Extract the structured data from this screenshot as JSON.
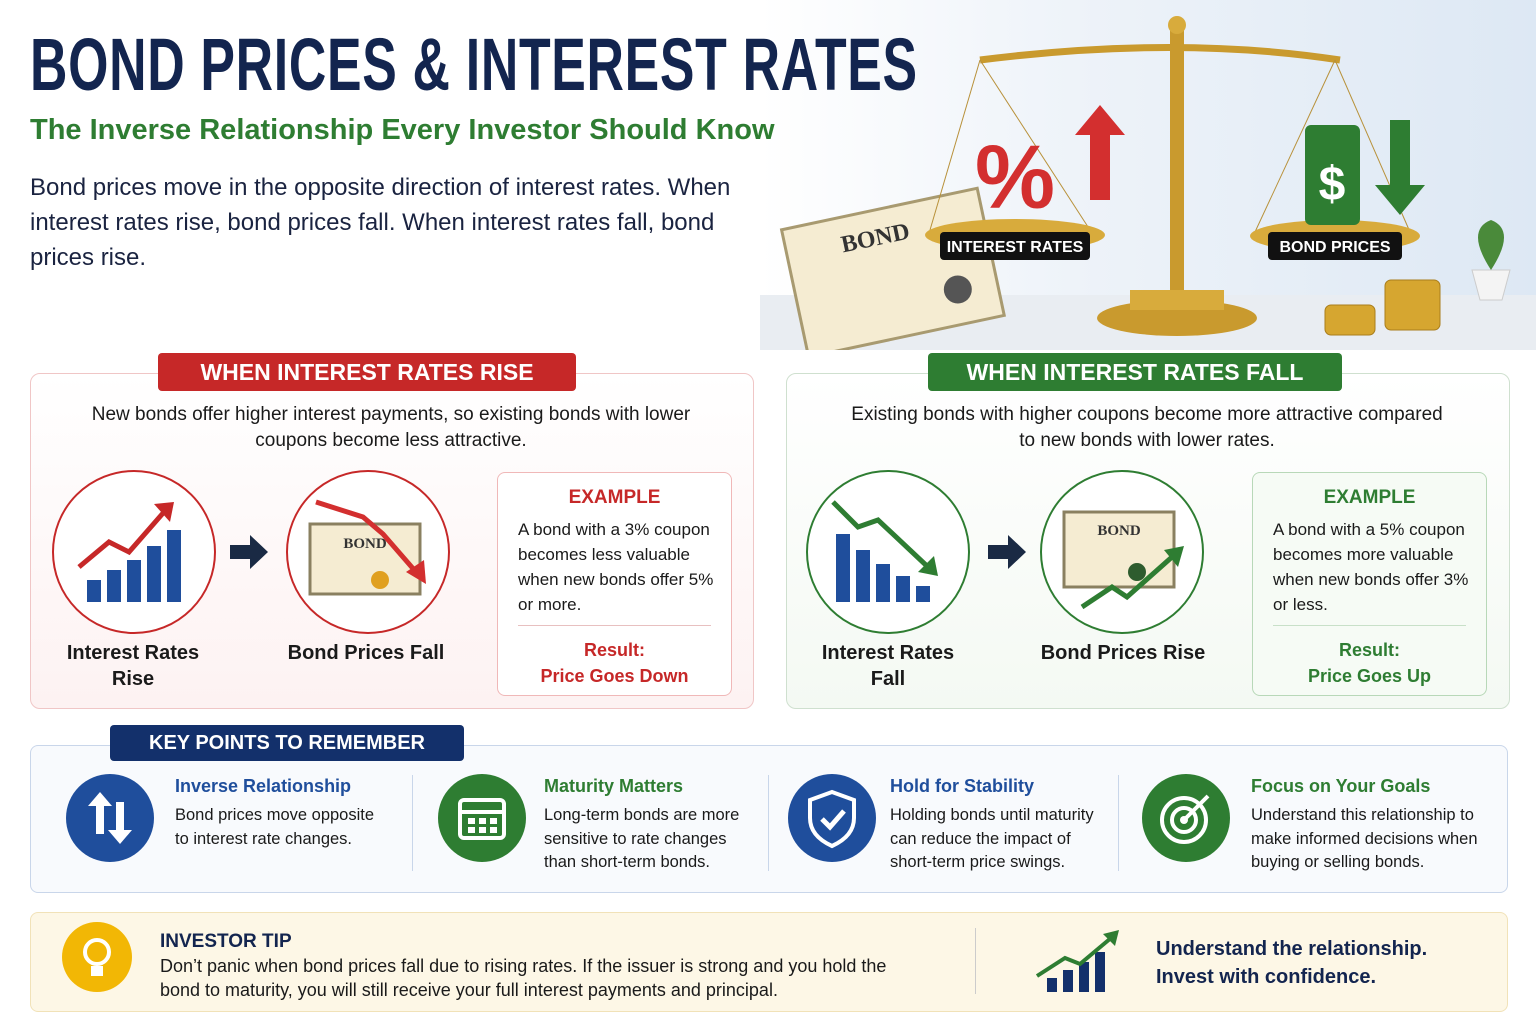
{
  "header": {
    "title": "BOND PRICES & INTEREST RATES",
    "subtitle": "The Inverse Relationship Every Investor Should Know",
    "intro": "Bond prices move in the opposite direction of interest rates. When interest rates rise, bond prices fall. When interest rates fall, bond prices rise."
  },
  "illustration": {
    "certificate": "BOND",
    "percent": "%",
    "dollar": "$",
    "left_pan": "INTEREST RATES",
    "right_pan": "BOND PRICES"
  },
  "panels": [
    {
      "heading": "WHEN INTEREST RATES RISE",
      "description": "New bonds offer higher interest payments, so existing bonds with lower coupons become less attractive.",
      "steps": [
        "Interest Rates Rise",
        "Bond Prices Fall"
      ],
      "certificate": "BOND",
      "example": {
        "heading": "EXAMPLE",
        "text": "A bond with a 3% coupon becomes less valuable when new bonds offer 5% or more.",
        "result_label": "Result:",
        "result": "Price Goes Down"
      }
    },
    {
      "heading": "WHEN INTEREST RATES FALL",
      "description": "Existing bonds with higher coupons become more attractive compared to new bonds with lower rates.",
      "steps": [
        "Interest Rates Fall",
        "Bond Prices Rise"
      ],
      "certificate": "BOND",
      "example": {
        "heading": "EXAMPLE",
        "text": "A bond with a 5% coupon becomes more valuable when new bonds offer 3% or less.",
        "result_label": "Result:",
        "result": "Price Goes Up"
      }
    }
  ],
  "key_points": {
    "heading": "KEY POINTS TO REMEMBER",
    "items": [
      {
        "title": "Inverse Relationship",
        "text": "Bond prices move opposite to interest rate changes."
      },
      {
        "title": "Maturity Matters",
        "text": "Long-term bonds are more sensitive to rate changes than short-term bonds."
      },
      {
        "title": "Hold for Stability",
        "text": "Holding bonds until maturity can reduce the impact of short-term price swings."
      },
      {
        "title": "Focus on Your Goals",
        "text": "Understand this relationship to make informed decisions when buying or selling bonds."
      }
    ]
  },
  "tip": {
    "heading": "INVESTOR TIP",
    "text": "Don’t panic when bond prices fall due to rising rates. If the issuer is strong and you hold the bond to maturity, you will still receive your full interest payments and principal.",
    "slogan": [
      "Understand the relationship.",
      "Invest with confidence."
    ]
  }
}
